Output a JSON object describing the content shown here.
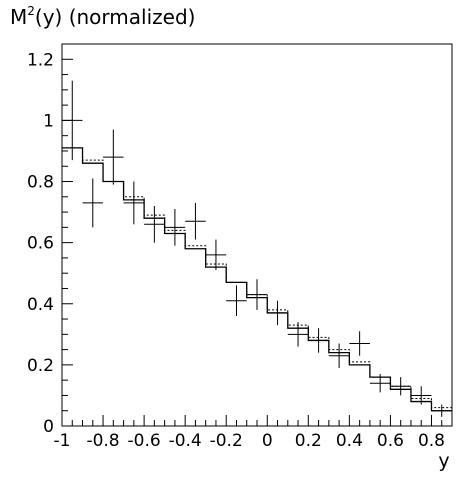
{
  "chart_data": {
    "type": "line",
    "title_base": "M",
    "title_superscript": "2",
    "title_rest": "(y) (normalized)",
    "xlabel": "y",
    "ylabel": "",
    "xlim": [
      -1,
      0.9
    ],
    "ylim": [
      0,
      1.25
    ],
    "grid": false,
    "x_ticks": [
      {
        "value": -1,
        "label": "-1"
      },
      {
        "value": -0.8,
        "label": "-0.8"
      },
      {
        "value": -0.6,
        "label": "-0.6"
      },
      {
        "value": -0.4,
        "label": "-0.4"
      },
      {
        "value": -0.2,
        "label": "-0.2"
      },
      {
        "value": 0,
        "label": "0"
      },
      {
        "value": 0.2,
        "label": "0.2"
      },
      {
        "value": 0.4,
        "label": "0.4"
      },
      {
        "value": 0.6,
        "label": "0.6"
      },
      {
        "value": 0.8,
        "label": "0.8"
      }
    ],
    "y_ticks": [
      {
        "value": 0,
        "label": "0"
      },
      {
        "value": 0.2,
        "label": "0.2"
      },
      {
        "value": 0.4,
        "label": "0.4"
      },
      {
        "value": 0.6,
        "label": "0.6"
      },
      {
        "value": 0.8,
        "label": "0.8"
      },
      {
        "value": 1,
        "label": "1"
      },
      {
        "value": 1.2,
        "label": "1.2"
      }
    ],
    "bin_edges": [
      -1.0,
      -0.9,
      -0.8,
      -0.7,
      -0.6,
      -0.5,
      -0.4,
      -0.3,
      -0.2,
      -0.1,
      0.0,
      0.1,
      0.2,
      0.3,
      0.4,
      0.5,
      0.6,
      0.7,
      0.8,
      0.9
    ],
    "series": [
      {
        "style": "solid-step",
        "values": [
          0.91,
          0.86,
          0.8,
          0.74,
          0.68,
          0.63,
          0.58,
          0.52,
          0.47,
          0.42,
          0.37,
          0.32,
          0.28,
          0.24,
          0.2,
          0.16,
          0.12,
          0.08,
          0.05
        ]
      },
      {
        "style": "dotted-step",
        "values": [
          0.91,
          0.87,
          0.8,
          0.75,
          0.69,
          0.64,
          0.59,
          0.53,
          0.47,
          0.43,
          0.38,
          0.33,
          0.29,
          0.25,
          0.21,
          0.16,
          0.13,
          0.09,
          0.06
        ]
      },
      {
        "style": "error-crosses",
        "points": [
          {
            "x": -0.95,
            "y": 1.0,
            "err": 0.13
          },
          {
            "x": -0.85,
            "y": 0.73,
            "err": 0.08
          },
          {
            "x": -0.75,
            "y": 0.88,
            "err": 0.09
          },
          {
            "x": -0.65,
            "y": 0.73,
            "err": 0.07
          },
          {
            "x": -0.55,
            "y": 0.66,
            "err": 0.06
          },
          {
            "x": -0.45,
            "y": 0.65,
            "err": 0.06
          },
          {
            "x": -0.35,
            "y": 0.67,
            "err": 0.06
          },
          {
            "x": -0.25,
            "y": 0.56,
            "err": 0.05
          },
          {
            "x": -0.15,
            "y": 0.41,
            "err": 0.05
          },
          {
            "x": -0.05,
            "y": 0.43,
            "err": 0.05
          },
          {
            "x": 0.05,
            "y": 0.37,
            "err": 0.04
          },
          {
            "x": 0.15,
            "y": 0.3,
            "err": 0.04
          },
          {
            "x": 0.25,
            "y": 0.28,
            "err": 0.04
          },
          {
            "x": 0.35,
            "y": 0.23,
            "err": 0.04
          },
          {
            "x": 0.45,
            "y": 0.27,
            "err": 0.04
          },
          {
            "x": 0.55,
            "y": 0.14,
            "err": 0.03
          },
          {
            "x": 0.65,
            "y": 0.13,
            "err": 0.03
          },
          {
            "x": 0.75,
            "y": 0.1,
            "err": 0.03
          },
          {
            "x": 0.85,
            "y": 0.05,
            "err": 0.02
          }
        ]
      }
    ],
    "colors": {
      "line": "#000000",
      "background": "#ffffff"
    }
  }
}
